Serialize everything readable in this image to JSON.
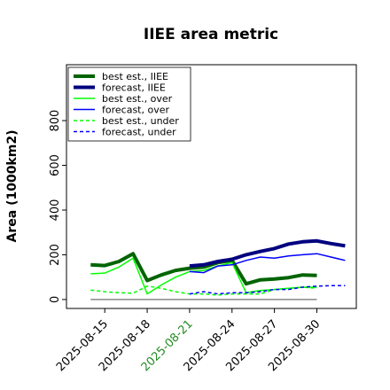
{
  "chart_data": {
    "type": "line",
    "title": "IIEE area metric",
    "y_label": "Area (1000km2)",
    "xlim": [
      "2025-08-12T07:00",
      "2025-09-01T19:00"
    ],
    "ylim": [
      -40,
      1050
    ],
    "xticks": [
      "2025-08-15",
      "2025-08-18",
      "2025-08-21",
      "2025-08-24",
      "2025-08-27",
      "2025-08-30"
    ],
    "highlight_xtick": "2025-08-21",
    "highlight_color": "#228b22",
    "yticks": [
      0,
      200,
      400,
      600,
      800
    ],
    "zero_line": {
      "x": [
        "2025-08-14",
        "2025-08-30"
      ],
      "color": "#888888"
    },
    "legend": "upper left",
    "series": [
      {
        "name": "best est., IIEE",
        "color": "#006400",
        "width": 4,
        "dash": false,
        "x": [
          "2025-08-14",
          "2025-08-15",
          "2025-08-16",
          "2025-08-17",
          "2025-08-18",
          "2025-08-19",
          "2025-08-20",
          "2025-08-21",
          "2025-08-22",
          "2025-08-23",
          "2025-08-24",
          "2025-08-25",
          "2025-08-26",
          "2025-08-27",
          "2025-08-28",
          "2025-08-29",
          "2025-08-30"
        ],
        "values": [
          155,
          152,
          170,
          205,
          85,
          110,
          130,
          140,
          145,
          165,
          175,
          70,
          88,
          92,
          98,
          110,
          108
        ]
      },
      {
        "name": "forecast, IIEE",
        "color": "#00007f",
        "width": 4,
        "dash": false,
        "x": [
          "2025-08-21",
          "2025-08-22",
          "2025-08-23",
          "2025-08-24",
          "2025-08-25",
          "2025-08-26",
          "2025-08-27",
          "2025-08-28",
          "2025-08-29",
          "2025-08-30",
          "2025-08-31",
          "2025-09-01"
        ],
        "values": [
          150,
          155,
          170,
          180,
          200,
          215,
          228,
          248,
          258,
          262,
          250,
          240
        ]
      },
      {
        "name": "best est., over",
        "color": "#00ff00",
        "width": 1.5,
        "dash": false,
        "x": [
          "2025-08-14",
          "2025-08-15",
          "2025-08-16",
          "2025-08-17",
          "2025-08-18",
          "2025-08-19",
          "2025-08-20",
          "2025-08-21",
          "2025-08-22",
          "2025-08-23",
          "2025-08-24",
          "2025-08-25",
          "2025-08-26",
          "2025-08-27",
          "2025-08-28",
          "2025-08-29",
          "2025-08-30"
        ],
        "values": [
          115,
          118,
          145,
          185,
          25,
          65,
          100,
          125,
          130,
          150,
          165,
          30,
          40,
          45,
          50,
          55,
          55
        ]
      },
      {
        "name": "forecast, over",
        "color": "#0000ff",
        "width": 1.5,
        "dash": false,
        "x": [
          "2025-08-21",
          "2025-08-22",
          "2025-08-23",
          "2025-08-24",
          "2025-08-25",
          "2025-08-26",
          "2025-08-27",
          "2025-08-28",
          "2025-08-29",
          "2025-08-30",
          "2025-08-31",
          "2025-09-01"
        ],
        "values": [
          125,
          120,
          150,
          155,
          175,
          190,
          185,
          195,
          200,
          205,
          190,
          175
        ]
      },
      {
        "name": "best est., under",
        "color": "#00ff00",
        "width": 1.5,
        "dash": true,
        "x": [
          "2025-08-14",
          "2025-08-15",
          "2025-08-16",
          "2025-08-17",
          "2025-08-18",
          "2025-08-19",
          "2025-08-20",
          "2025-08-21",
          "2025-08-22",
          "2025-08-23",
          "2025-08-24",
          "2025-08-25",
          "2025-08-26",
          "2025-08-27",
          "2025-08-28",
          "2025-08-29",
          "2025-08-30"
        ],
        "values": [
          42,
          35,
          30,
          28,
          60,
          50,
          35,
          25,
          25,
          20,
          25,
          25,
          25,
          45,
          50,
          55,
          50
        ]
      },
      {
        "name": "forecast, under",
        "color": "#0000ff",
        "width": 1.5,
        "dash": true,
        "x": [
          "2025-08-21",
          "2025-08-22",
          "2025-08-23",
          "2025-08-24",
          "2025-08-25",
          "2025-08-26",
          "2025-08-27",
          "2025-08-28",
          "2025-08-29",
          "2025-08-30",
          "2025-08-31",
          "2025-09-01"
        ],
        "values": [
          25,
          35,
          25,
          30,
          30,
          35,
          45,
          45,
          55,
          60,
          62,
          62
        ]
      }
    ]
  }
}
